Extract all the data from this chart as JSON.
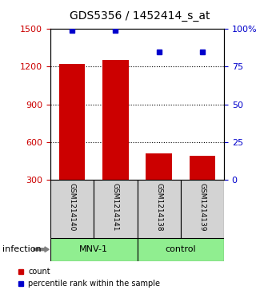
{
  "title": "GDS5356 / 1452414_s_at",
  "samples": [
    "GSM1214140",
    "GSM1214141",
    "GSM1214138",
    "GSM1214139"
  ],
  "counts": [
    1220,
    1255,
    510,
    490
  ],
  "percentiles": [
    99,
    99,
    85,
    85
  ],
  "ylim_left": [
    300,
    1500
  ],
  "ylim_right": [
    0,
    100
  ],
  "yticks_left": [
    300,
    600,
    900,
    1200,
    1500
  ],
  "yticks_right": [
    0,
    25,
    50,
    75,
    100
  ],
  "ytick_labels_right": [
    "0",
    "25",
    "50",
    "75",
    "100%"
  ],
  "groups": [
    {
      "label": "MNV-1",
      "indices": [
        0,
        1
      ],
      "color": "#90EE90"
    },
    {
      "label": "control",
      "indices": [
        2,
        3
      ],
      "color": "#90EE90"
    }
  ],
  "factor_label": "infection",
  "bar_color": "#cc0000",
  "dot_color": "#0000cc",
  "bar_width": 0.6,
  "grid_color": "#000000",
  "bg_color": "#d3d3d3",
  "group_bg_color": "#90EE90",
  "legend_red_label": "count",
  "legend_blue_label": "percentile rank within the sample",
  "left_tick_color": "#cc0000",
  "right_tick_color": "#0000cc"
}
